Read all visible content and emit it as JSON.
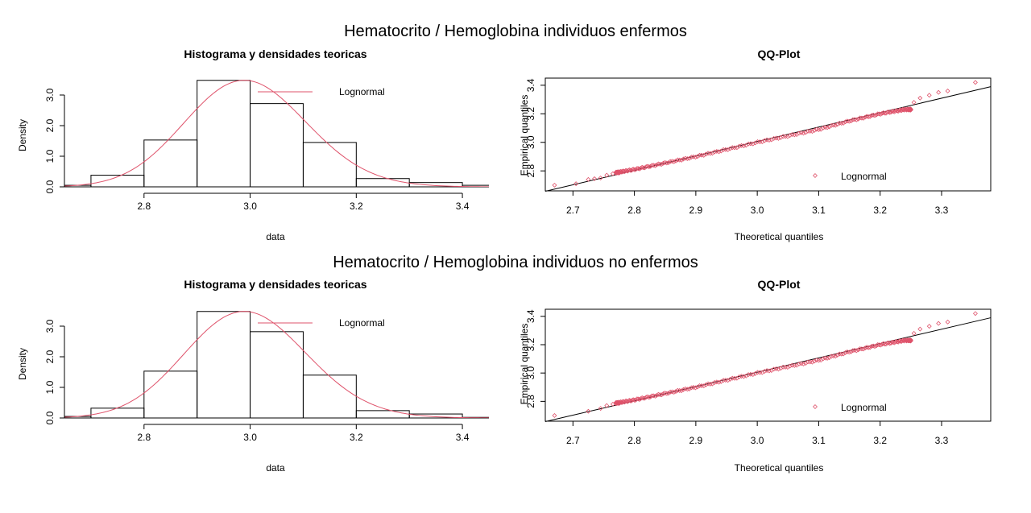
{
  "figure": {
    "sections": [
      {
        "title": "Hematocrito / Hemoglobina individuos enfermos",
        "charts": [
          {
            "type": "bar",
            "title": "Histograma y densidades teoricas",
            "xlabel": "data",
            "ylabel": "Density",
            "xlim": [
              2.65,
              3.45
            ],
            "ylim": [
              0,
              3.5
            ],
            "xticks": [
              2.8,
              3.0,
              3.2,
              3.4
            ],
            "yticks": [
              0.0,
              1.0,
              2.0,
              3.0
            ],
            "xtick_labels": [
              "2.8",
              "3.0",
              "3.2",
              "3.4"
            ],
            "ytick_labels": [
              "0.0",
              "1.0",
              "2.0",
              "3.0"
            ],
            "bins": [
              {
                "from": 2.6,
                "to": 2.7,
                "value": 0.05
              },
              {
                "from": 2.7,
                "to": 2.8,
                "value": 0.38
              },
              {
                "from": 2.8,
                "to": 2.9,
                "value": 1.53
              },
              {
                "from": 2.9,
                "to": 3.0,
                "value": 3.48
              },
              {
                "from": 3.0,
                "to": 3.1,
                "value": 2.72
              },
              {
                "from": 3.1,
                "to": 3.2,
                "value": 1.45
              },
              {
                "from": 3.2,
                "to": 3.3,
                "value": 0.27
              },
              {
                "from": 3.3,
                "to": 3.4,
                "value": 0.14
              },
              {
                "from": 3.4,
                "to": 3.5,
                "value": 0.05
              }
            ],
            "density": {
              "name": "Lognormal",
              "meanlog": 1.0963,
              "sdlog": 0.0383
            },
            "legend": {
              "label": "Lognormal",
              "position": "top-right"
            },
            "colors": {
              "density": "#DF536B",
              "bars": "#000000"
            }
          },
          {
            "type": "scatter",
            "title": "QQ-Plot",
            "xlabel": "Theoretical quantiles",
            "ylabel": "Empirical quantiles",
            "xlim": [
              2.655,
              3.38
            ],
            "ylim": [
              2.66,
              3.45
            ],
            "xticks": [
              2.7,
              2.8,
              2.9,
              3.0,
              3.1,
              3.2,
              3.3
            ],
            "yticks": [
              2.8,
              3.0,
              3.2,
              3.4
            ],
            "xtick_labels": [
              "2.7",
              "2.8",
              "2.9",
              "3.0",
              "3.1",
              "3.2",
              "3.3"
            ],
            "ytick_labels": [
              "2.8",
              "3.0",
              "3.2",
              "3.4"
            ],
            "reference_line": [
              [
                2.655,
                2.657
              ],
              [
                3.38,
                3.39
              ]
            ],
            "points_curve": [
              [
                2.67,
                2.69
              ],
              [
                2.72,
                2.73
              ],
              [
                2.76,
                2.78
              ],
              [
                2.8,
                2.81
              ],
              [
                2.9,
                2.9
              ],
              [
                3.0,
                3.0
              ],
              [
                3.1,
                3.09
              ],
              [
                3.15,
                3.15
              ],
              [
                3.2,
                3.2
              ],
              [
                3.24,
                3.23
              ]
            ],
            "n_points": 200,
            "outliers": [
              [
                2.67,
                2.7
              ],
              [
                2.705,
                2.71
              ],
              [
                2.725,
                2.74
              ],
              [
                2.735,
                2.745
              ],
              [
                2.745,
                2.75
              ],
              [
                2.755,
                2.77
              ],
              [
                2.765,
                2.78
              ],
              [
                2.775,
                2.785
              ],
              [
                3.255,
                3.28
              ],
              [
                3.265,
                3.31
              ],
              [
                3.28,
                3.33
              ],
              [
                3.295,
                3.35
              ],
              [
                3.31,
                3.36
              ],
              [
                3.355,
                3.42
              ]
            ],
            "legend": {
              "label": "Lognormal",
              "position": "bottom-right"
            },
            "colors": {
              "points": "#DF536B",
              "line": "#000000"
            }
          }
        ]
      },
      {
        "title": "Hematocrito / Hemoglobina individuos no enfermos",
        "charts": [
          {
            "type": "bar",
            "title": "Histograma y densidades teoricas",
            "xlabel": "data",
            "ylabel": "Density",
            "xlim": [
              2.65,
              3.45
            ],
            "ylim": [
              0,
              3.5
            ],
            "xticks": [
              2.8,
              3.0,
              3.2,
              3.4
            ],
            "yticks": [
              0.0,
              1.0,
              2.0,
              3.0
            ],
            "xtick_labels": [
              "2.8",
              "3.0",
              "3.2",
              "3.4"
            ],
            "ytick_labels": [
              "0.0",
              "1.0",
              "2.0",
              "3.0"
            ],
            "bins": [
              {
                "from": 2.6,
                "to": 2.7,
                "value": 0.05
              },
              {
                "from": 2.7,
                "to": 2.8,
                "value": 0.32
              },
              {
                "from": 2.8,
                "to": 2.9,
                "value": 1.53
              },
              {
                "from": 2.9,
                "to": 3.0,
                "value": 3.48
              },
              {
                "from": 3.0,
                "to": 3.1,
                "value": 2.82
              },
              {
                "from": 3.1,
                "to": 3.2,
                "value": 1.4
              },
              {
                "from": 3.2,
                "to": 3.3,
                "value": 0.24
              },
              {
                "from": 3.3,
                "to": 3.4,
                "value": 0.13
              },
              {
                "from": 3.4,
                "to": 3.5,
                "value": 0.02
              }
            ],
            "density": {
              "name": "Lognormal",
              "meanlog": 1.0963,
              "sdlog": 0.0383
            },
            "legend": {
              "label": "Lognormal",
              "position": "top-right"
            },
            "colors": {
              "density": "#DF536B",
              "bars": "#000000"
            }
          },
          {
            "type": "scatter",
            "title": "QQ-Plot",
            "xlabel": "Theoretical quantiles",
            "ylabel": "Empirical quantiles",
            "xlim": [
              2.655,
              3.38
            ],
            "ylim": [
              2.66,
              3.45
            ],
            "xticks": [
              2.7,
              2.8,
              2.9,
              3.0,
              3.1,
              3.2,
              3.3
            ],
            "yticks": [
              2.8,
              3.0,
              3.2,
              3.4
            ],
            "xtick_labels": [
              "2.7",
              "2.8",
              "2.9",
              "3.0",
              "3.1",
              "3.2",
              "3.3"
            ],
            "ytick_labels": [
              "2.8",
              "3.0",
              "3.2",
              "3.4"
            ],
            "reference_line": [
              [
                2.655,
                2.657
              ],
              [
                3.38,
                3.39
              ]
            ],
            "points_curve": [
              [
                2.67,
                2.69
              ],
              [
                2.72,
                2.73
              ],
              [
                2.76,
                2.78
              ],
              [
                2.8,
                2.81
              ],
              [
                2.9,
                2.9
              ],
              [
                3.0,
                3.0
              ],
              [
                3.1,
                3.09
              ],
              [
                3.15,
                3.15
              ],
              [
                3.2,
                3.2
              ],
              [
                3.24,
                3.23
              ]
            ],
            "n_points": 200,
            "outliers": [
              [
                2.67,
                2.7
              ],
              [
                2.725,
                2.73
              ],
              [
                2.745,
                2.75
              ],
              [
                2.755,
                2.77
              ],
              [
                2.765,
                2.78
              ],
              [
                2.775,
                2.785
              ],
              [
                3.255,
                3.28
              ],
              [
                3.265,
                3.31
              ],
              [
                3.28,
                3.33
              ],
              [
                3.295,
                3.35
              ],
              [
                3.31,
                3.36
              ],
              [
                3.355,
                3.42
              ]
            ],
            "legend": {
              "label": "Lognormal",
              "position": "bottom-right"
            },
            "colors": {
              "points": "#DF536B",
              "line": "#000000"
            }
          }
        ]
      }
    ]
  },
  "chart_data": [
    {
      "type": "bar",
      "title": "Histograma y densidades teoricas",
      "xlabel": "data",
      "ylabel": "Density",
      "categories": [
        "2.6-2.7",
        "2.7-2.8",
        "2.8-2.9",
        "2.9-3.0",
        "3.0-3.1",
        "3.1-3.2",
        "3.2-3.3",
        "3.3-3.4",
        "3.4-3.5"
      ],
      "values": [
        0.05,
        0.38,
        1.53,
        3.48,
        2.72,
        1.45,
        0.27,
        0.14,
        0.05
      ],
      "series": [
        {
          "name": "Lognormal",
          "values": [
            0.05,
            0.38,
            1.53,
            3.48,
            2.72,
            1.45,
            0.27,
            0.14,
            0.05
          ]
        }
      ],
      "xlim": [
        2.65,
        3.45
      ],
      "ylim": [
        0,
        3.5
      ]
    },
    {
      "type": "scatter",
      "title": "QQ-Plot",
      "xlabel": "Theoretical quantiles",
      "ylabel": "Empirical quantiles",
      "series": [
        {
          "name": "Lognormal",
          "x": [
            2.67,
            2.72,
            2.8,
            2.9,
            3.0,
            3.1,
            3.2,
            3.3,
            3.355
          ],
          "y": [
            2.7,
            2.74,
            2.81,
            2.9,
            3.0,
            3.09,
            3.2,
            3.36,
            3.42
          ]
        }
      ],
      "xlim": [
        2.655,
        3.38
      ],
      "ylim": [
        2.66,
        3.45
      ]
    },
    {
      "type": "bar",
      "title": "Histograma y densidades teoricas",
      "xlabel": "data",
      "ylabel": "Density",
      "categories": [
        "2.6-2.7",
        "2.7-2.8",
        "2.8-2.9",
        "2.9-3.0",
        "3.0-3.1",
        "3.1-3.2",
        "3.2-3.3",
        "3.3-3.4",
        "3.4-3.5"
      ],
      "values": [
        0.05,
        0.32,
        1.53,
        3.48,
        2.82,
        1.4,
        0.24,
        0.13,
        0.02
      ],
      "series": [
        {
          "name": "Lognormal",
          "values": [
            0.05,
            0.32,
            1.53,
            3.48,
            2.82,
            1.4,
            0.24,
            0.13,
            0.02
          ]
        }
      ],
      "xlim": [
        2.65,
        3.45
      ],
      "ylim": [
        0,
        3.5
      ]
    },
    {
      "type": "scatter",
      "title": "QQ-Plot",
      "xlabel": "Theoretical quantiles",
      "ylabel": "Empirical quantiles",
      "series": [
        {
          "name": "Lognormal",
          "x": [
            2.67,
            2.72,
            2.8,
            2.9,
            3.0,
            3.1,
            3.2,
            3.3,
            3.355
          ],
          "y": [
            2.7,
            2.73,
            2.81,
            2.9,
            3.0,
            3.09,
            3.2,
            3.36,
            3.42
          ]
        }
      ],
      "xlim": [
        2.655,
        3.38
      ],
      "ylim": [
        2.66,
        3.45
      ]
    }
  ]
}
